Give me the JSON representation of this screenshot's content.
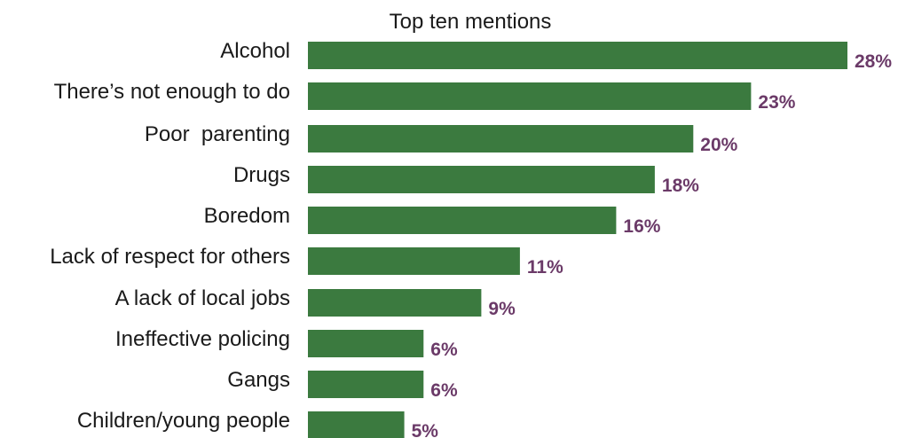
{
  "chart_data": {
    "type": "bar",
    "orientation": "horizontal",
    "title": "Top ten mentions",
    "xlabel": "",
    "ylabel": "",
    "categories": [
      "Alcohol",
      "There’s not enough to do",
      "Poor  parenting",
      "Drugs",
      "Boredom",
      "Lack of respect for others",
      "A lack of local jobs",
      "Ineffective policing",
      "Gangs",
      "Children/young people"
    ],
    "values": [
      28,
      23,
      20,
      18,
      16,
      11,
      9,
      6,
      6,
      5
    ],
    "value_labels": [
      "28%",
      "23%",
      "20%",
      "18%",
      "16%",
      "11%",
      "9%",
      "6%",
      "6%",
      "5%"
    ],
    "unit": "%",
    "xlim": [
      0,
      28
    ],
    "grid": false,
    "legend": "none",
    "colors": {
      "bar": "#3b7a3f",
      "value_label": "#6b3a68"
    }
  }
}
